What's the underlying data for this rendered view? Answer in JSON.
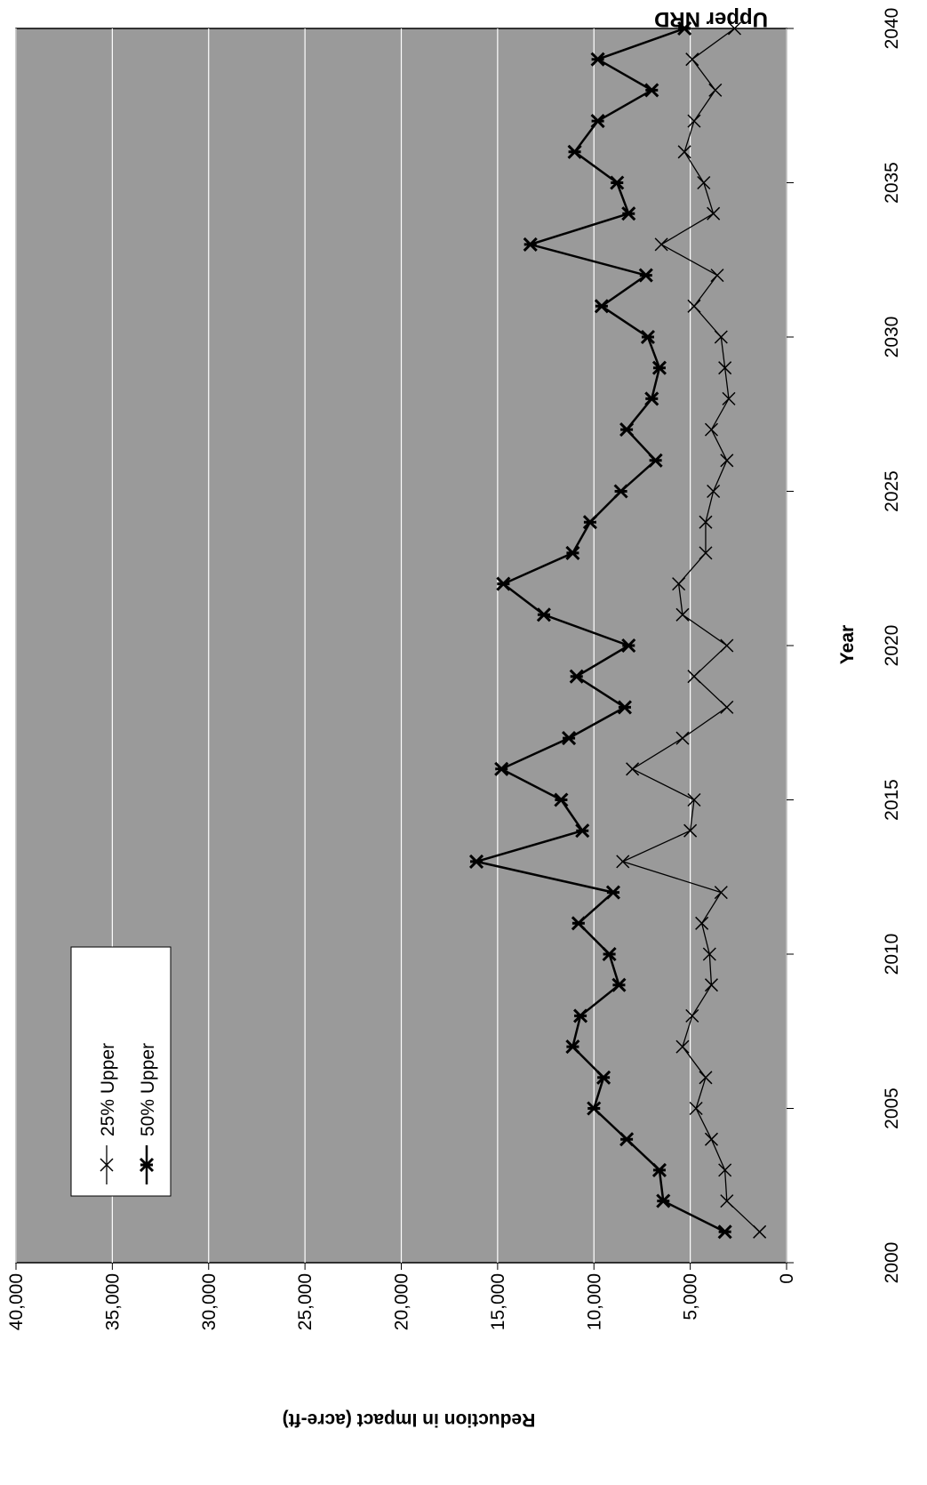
{
  "chart_data": {
    "type": "line",
    "title": "Upper NRD",
    "x_label": "Year",
    "y_label": "Reduction in Impact (acre-ft)",
    "x": [
      2001,
      2002,
      2003,
      2004,
      2005,
      2006,
      2007,
      2008,
      2009,
      2010,
      2011,
      2012,
      2013,
      2014,
      2015,
      2016,
      2017,
      2018,
      2019,
      2020,
      2021,
      2022,
      2023,
      2024,
      2025,
      2026,
      2027,
      2028,
      2029,
      2030,
      2031,
      2032,
      2033,
      2034,
      2035,
      2036,
      2037,
      2038,
      2039,
      2040
    ],
    "series": [
      {
        "name": "25% Upper",
        "color": "#000000",
        "values": [
          1400,
          3100,
          3200,
          3900,
          4700,
          4200,
          5400,
          4900,
          3900,
          4000,
          4400,
          3400,
          8500,
          5000,
          4800,
          8000,
          5400,
          3100,
          4800,
          3100,
          5400,
          5600,
          4200,
          4200,
          3800,
          3100,
          3900,
          3000,
          3200,
          3400,
          4800,
          3600,
          6500,
          3800,
          4300,
          5300,
          4800,
          3700,
          4900,
          2700
        ]
      },
      {
        "name": "50% Upper",
        "color": "#000000",
        "values": [
          3200,
          6400,
          6600,
          8300,
          10000,
          9500,
          11100,
          10700,
          8700,
          9200,
          10800,
          9000,
          16100,
          10600,
          11700,
          14800,
          11300,
          8400,
          10900,
          8200,
          12600,
          14700,
          11100,
          10200,
          8600,
          6800,
          8300,
          7000,
          6600,
          7200,
          9600,
          7300,
          13300,
          8200,
          8800,
          11000,
          9800,
          7000,
          9800,
          5300
        ]
      }
    ],
    "xlim": [
      2000,
      2040
    ],
    "xticks": [
      2000,
      2005,
      2010,
      2015,
      2020,
      2025,
      2030,
      2035,
      2040
    ],
    "ylim": [
      0,
      40000
    ],
    "yticks": [
      0,
      {
        "value": 5000,
        "label": "5,000"
      },
      {
        "value": 10000,
        "label": "10,000"
      },
      {
        "value": 15000,
        "label": "15,000"
      },
      {
        "value": 20000,
        "label": "20,000"
      },
      {
        "value": 25000,
        "label": "25,000"
      },
      {
        "value": 30000,
        "label": "30,000"
      },
      {
        "value": 35000,
        "label": "35,000"
      },
      {
        "value": 40000,
        "label": "40,000"
      }
    ],
    "grid": true,
    "plot_background": "#9a9a9a"
  }
}
